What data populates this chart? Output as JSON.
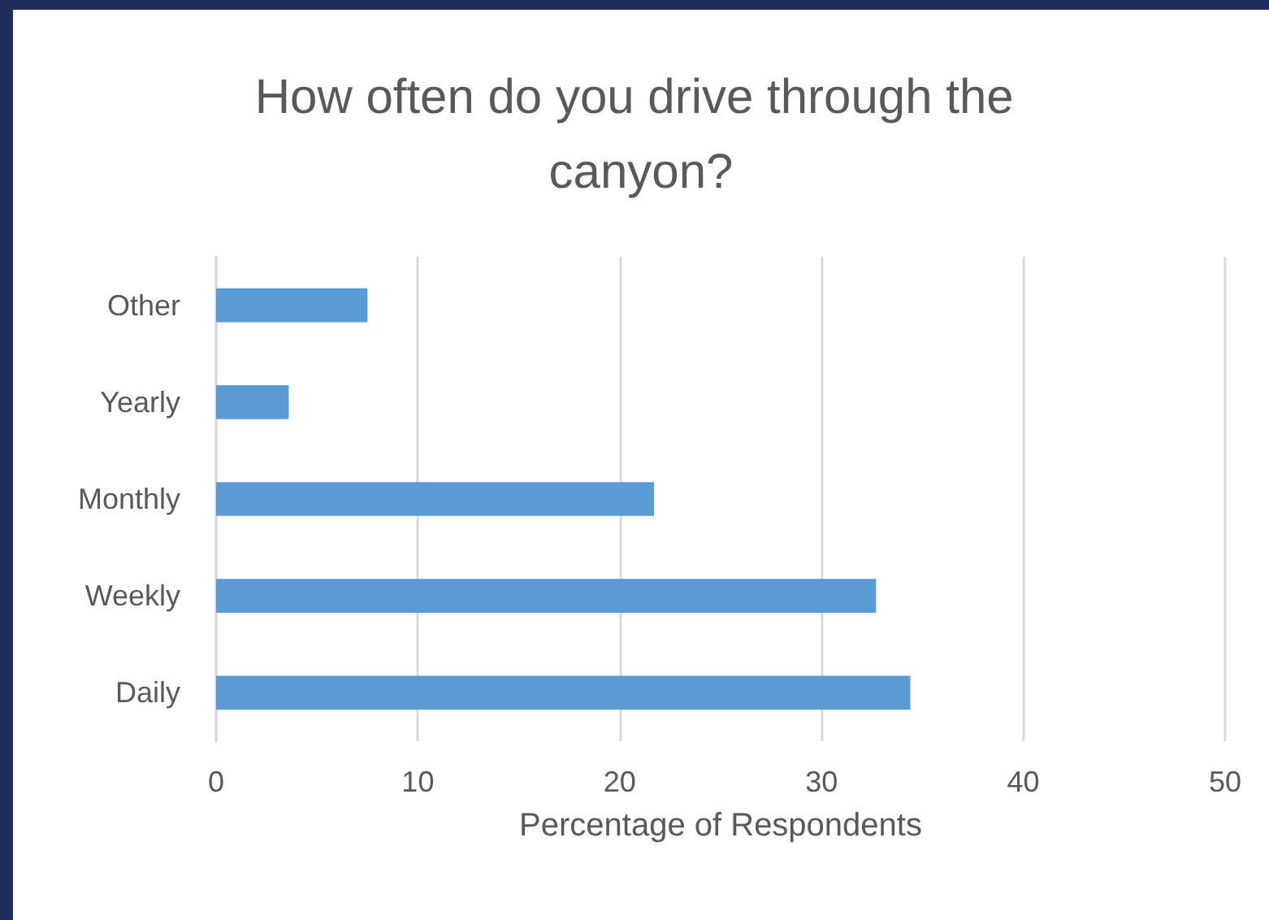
{
  "chart_data": {
    "type": "bar",
    "orientation": "horizontal",
    "title": "How often do you drive through the canyon?",
    "xlabel": "Percentage of Respondents",
    "categories": [
      "Other",
      "Yearly",
      "Monthly",
      "Weekly",
      "Daily"
    ],
    "values": [
      7.5,
      3.6,
      21.7,
      32.7,
      34.4
    ],
    "color": "#5b9bd5",
    "xlim": [
      0,
      50
    ],
    "xticks": [
      0,
      10,
      20,
      30,
      40,
      50
    ],
    "grid": "x"
  }
}
